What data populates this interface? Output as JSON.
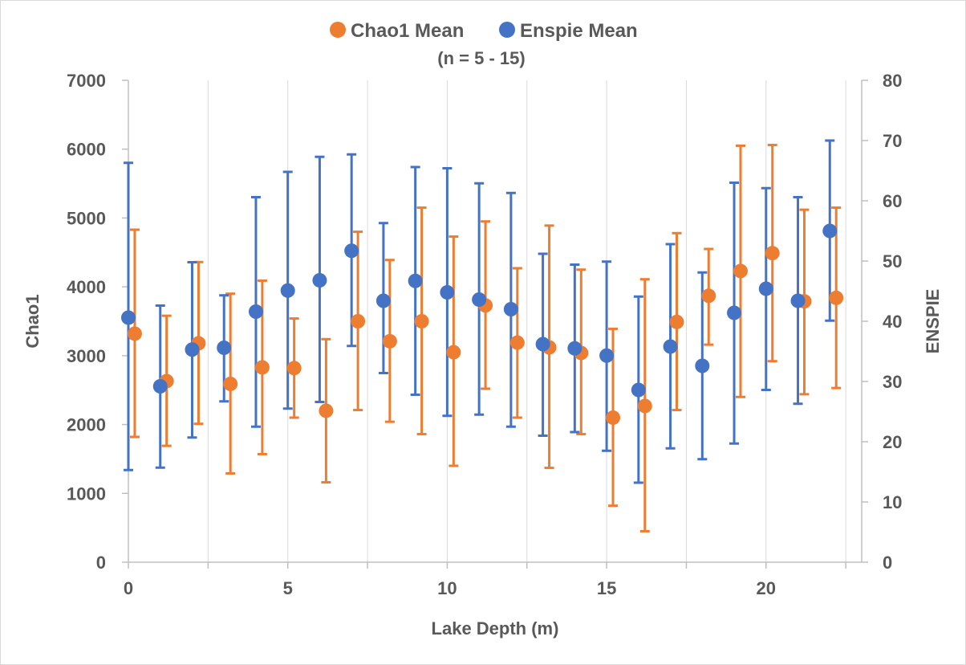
{
  "chart_data": {
    "type": "scatter",
    "subtitle": "(n = 5 - 15)",
    "xlabel": "Lake Depth (m)",
    "ylabel": "Chao1",
    "y2label": "ENSPIE",
    "xlim": [
      0,
      23
    ],
    "ylim": [
      0,
      7000
    ],
    "y2lim": [
      0,
      80
    ],
    "xticks": [
      "0",
      "5",
      "10",
      "15",
      "20"
    ],
    "xtick_values": [
      0,
      5,
      10,
      15,
      20
    ],
    "yticks": [
      "0",
      "1000",
      "2000",
      "3000",
      "4000",
      "5000",
      "6000",
      "7000"
    ],
    "ytick_values": [
      0,
      1000,
      2000,
      3000,
      4000,
      5000,
      6000,
      7000
    ],
    "y2ticks": [
      "0",
      "10",
      "20",
      "30",
      "40",
      "50",
      "60",
      "70",
      "80"
    ],
    "y2tick_values": [
      0,
      10,
      20,
      30,
      40,
      50,
      60,
      70,
      80
    ],
    "grid": "vertical",
    "legend": "top",
    "colors": {
      "chao1": "#ED7D31",
      "enspie": "#4472C4"
    },
    "series": [
      {
        "name": "Chao1 Mean",
        "axis": "left",
        "x": [
          0.2,
          1.2,
          2.2,
          3.2,
          4.2,
          5.2,
          6.2,
          7.2,
          8.2,
          9.2,
          10.2,
          11.2,
          12.2,
          13.2,
          14.2,
          15.2,
          16.2,
          17.2,
          18.2,
          19.2,
          20.2,
          21.2,
          22.2
        ],
        "y": [
          3320,
          2630,
          3180,
          2590,
          2830,
          2820,
          2200,
          3500,
          3210,
          3500,
          3050,
          3730,
          3190,
          3120,
          3040,
          2100,
          2270,
          3490,
          3870,
          4230,
          4490,
          3790,
          3840
        ],
        "err_low": [
          1820,
          1690,
          2010,
          1290,
          1570,
          2100,
          1160,
          2210,
          2040,
          1860,
          1400,
          2520,
          2100,
          1370,
          1860,
          820,
          450,
          2210,
          3160,
          2400,
          2920,
          2440,
          2530
        ],
        "err_high": [
          4830,
          3580,
          4360,
          3900,
          4090,
          3540,
          3240,
          4800,
          4390,
          5150,
          4730,
          4950,
          4270,
          4890,
          4250,
          3390,
          4110,
          4780,
          4550,
          6050,
          6060,
          5120,
          5150
        ]
      },
      {
        "name": "Enspie Mean",
        "axis": "right",
        "x": [
          0,
          1,
          2,
          3,
          4,
          5,
          6,
          7,
          8,
          9,
          10,
          11,
          12,
          13,
          14,
          15,
          16,
          17,
          18,
          19,
          20,
          21,
          22
        ],
        "y": [
          40.6,
          29.2,
          35.3,
          35.6,
          41.6,
          45.1,
          46.8,
          51.7,
          43.4,
          46.7,
          44.8,
          43.6,
          42,
          36.2,
          35.5,
          34.3,
          28.6,
          35.8,
          32.6,
          41.4,
          45.4,
          43.4,
          55
        ],
        "err_low": [
          15.3,
          15.7,
          20.7,
          26.7,
          22.5,
          25.5,
          26.6,
          35.9,
          31.4,
          27.8,
          24.3,
          24.5,
          22.5,
          21,
          21.6,
          18.5,
          13.2,
          18.9,
          17.1,
          19.7,
          28.6,
          26.3,
          40.1
        ],
        "err_high": [
          66.3,
          42.6,
          49.8,
          44.3,
          60.6,
          64.8,
          67.3,
          67.7,
          56.3,
          65.6,
          65.4,
          62.9,
          61.3,
          51.2,
          49.4,
          49.9,
          44.1,
          52.8,
          48.1,
          63,
          62.1,
          60.6,
          70
        ]
      }
    ]
  }
}
